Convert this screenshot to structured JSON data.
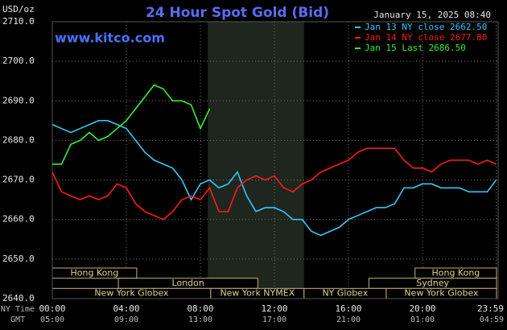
{
  "chart_data": {
    "type": "line",
    "title": "24 Hour Spot Gold (Bid)",
    "timestamp": "January 15, 2025 08:40",
    "website": "www.kitco.com",
    "y_label": "USD/oz",
    "x_label": "NY Time",
    "x2_label": "GMT",
    "x": [
      0,
      0.5,
      1,
      1.5,
      2,
      2.5,
      3,
      3.5,
      4,
      4.5,
      5,
      5.5,
      6,
      6.5,
      7,
      7.5,
      8,
      8.5,
      9,
      9.5,
      10,
      10.5,
      11,
      11.5,
      12,
      12.5,
      13,
      13.5,
      14,
      14.5,
      15,
      15.5,
      16,
      16.5,
      17,
      17.5,
      18,
      18.5,
      19,
      19.5,
      20,
      20.5,
      21,
      21.5,
      22,
      22.5,
      23,
      23.5,
      23.98
    ],
    "series": [
      {
        "name": "Jan 13 NY close 2662.50",
        "color": "#33c8f8",
        "values": [
          2684,
          2683,
          2682,
          2683,
          2684,
          2685,
          2685,
          2684,
          2683,
          2680,
          2677,
          2675,
          2674,
          2673,
          2670,
          2665,
          2669,
          2670,
          2668,
          2669,
          2672,
          2666,
          2662,
          2663,
          2663,
          2662,
          2660,
          2660,
          2657,
          2656,
          2657,
          2658,
          2660,
          2661,
          2662,
          2663,
          2663,
          2664,
          2668,
          2668,
          2669,
          2669,
          2668,
          2668,
          2668,
          2667,
          2667,
          2667,
          2670
        ]
      },
      {
        "name": "Jan 14 NY close 2677.80",
        "color": "#ff1a1a",
        "values": [
          2672,
          2667,
          2666,
          2665,
          2666,
          2665,
          2666,
          2669,
          2668,
          2664,
          2662,
          2661,
          2660,
          2662,
          2665,
          2666,
          2665,
          2668,
          2662,
          2662,
          2668,
          2670,
          2671,
          2670,
          2671,
          2668,
          2667,
          2669,
          2670,
          2672,
          2673,
          2674,
          2675,
          2677,
          2678,
          2678,
          2678,
          2678,
          2675,
          2673,
          2673,
          2672,
          2674,
          2675,
          2675,
          2675,
          2674,
          2675,
          2674
        ]
      },
      {
        "name": "Jan 15 Last 2686.50",
        "color": "#33f033",
        "values": [
          2674,
          2674,
          2679,
          2680,
          2682,
          2680,
          2681,
          2683,
          2685,
          2688,
          2691,
          2694,
          2693,
          2690,
          2690,
          2689,
          2683,
          2688,
          null,
          null,
          null,
          null,
          null,
          null,
          null,
          null,
          null,
          null,
          null,
          null,
          null,
          null,
          null,
          null,
          null,
          null,
          null,
          null,
          null,
          null,
          null,
          null,
          null,
          null,
          null,
          null,
          null,
          null,
          null
        ]
      }
    ],
    "xlim": [
      0,
      24
    ],
    "ylim": [
      2640,
      2710
    ],
    "xticks": [
      {
        "value": 0,
        "label": "00:00"
      },
      {
        "value": 4,
        "label": "04:00"
      },
      {
        "value": 8,
        "label": "08:00"
      },
      {
        "value": 12,
        "label": "12:00"
      },
      {
        "value": 16,
        "label": "16:00"
      },
      {
        "value": 20,
        "label": "20:00"
      },
      {
        "value": 23.98,
        "label": "23:59"
      }
    ],
    "x2ticks": [
      {
        "value": 0,
        "label": "05:00"
      },
      {
        "value": 4,
        "label": "09:00"
      },
      {
        "value": 8,
        "label": "13:00"
      },
      {
        "value": 12,
        "label": "17:00"
      },
      {
        "value": 16,
        "label": "21:00"
      },
      {
        "value": 20,
        "label": "01:00"
      },
      {
        "value": 23.98,
        "label": "04:59"
      }
    ],
    "yticks": [
      {
        "value": 2640,
        "label": "2640.0"
      },
      {
        "value": 2650,
        "label": "2650.0"
      },
      {
        "value": 2660,
        "label": "2660.0"
      },
      {
        "value": 2670,
        "label": "2670.0"
      },
      {
        "value": 2680,
        "label": "2680.0"
      },
      {
        "value": 2690,
        "label": "2690.0"
      },
      {
        "value": 2700,
        "label": "2700.0"
      },
      {
        "value": 2710,
        "label": "2710.0"
      }
    ],
    "grid": true,
    "shade": [
      8.4,
      13.6
    ],
    "sessions": [
      [
        {
          "label": "Hong Kong",
          "start": 0,
          "end": 4.56
        },
        {
          "label": "Hong Kong",
          "start": 19.6,
          "end": 24
        }
      ],
      [
        {
          "label": "London",
          "start": 3.57,
          "end": 11.1
        },
        {
          "label": "Sydney",
          "start": 17.1,
          "end": 24
        }
      ],
      [
        {
          "label": "New York Globex",
          "start": 0,
          "end": 8.56
        },
        {
          "label": "New York NYMEX",
          "start": 8.56,
          "end": 13.6
        },
        {
          "label": "NY Globex",
          "start": 13.6,
          "end": 18.04
        },
        {
          "label": "New York Globex",
          "start": 18.04,
          "end": 24
        }
      ]
    ]
  }
}
